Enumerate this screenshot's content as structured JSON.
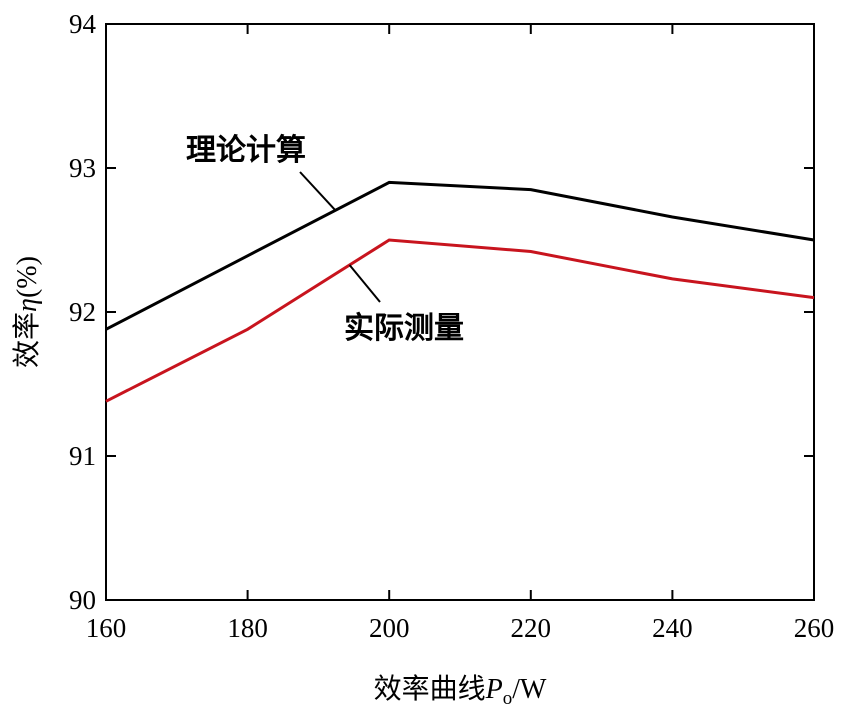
{
  "chart_data": {
    "type": "line",
    "title": "",
    "xlabel": "效率曲线Pₒ/W",
    "xlabel_parts": {
      "prefix": "效率曲线",
      "var": "P",
      "sub": "o",
      "unit": "/W"
    },
    "ylabel": "效率η(%)",
    "ylabel_parts": {
      "prefix": "效率",
      "var": "η",
      "unit": "(%)"
    },
    "x": [
      160,
      180,
      200,
      220,
      240,
      260
    ],
    "xlim": [
      160,
      260
    ],
    "ylim": [
      90,
      94
    ],
    "x_ticks": [
      "160",
      "180",
      "200",
      "220",
      "240",
      "260"
    ],
    "y_ticks": [
      "90",
      "91",
      "92",
      "93",
      "94"
    ],
    "grid": false,
    "legend": "none",
    "series": [
      {
        "name": "理论计算",
        "color": "#000000",
        "values": [
          91.88,
          92.39,
          92.9,
          92.85,
          92.66,
          92.5
        ]
      },
      {
        "name": "实际测量",
        "color": "#c8141e",
        "values": [
          91.38,
          91.88,
          92.5,
          92.42,
          92.23,
          92.1
        ]
      }
    ],
    "annotations": [
      {
        "text": "理论计算",
        "series": 0
      },
      {
        "text": "实际测量",
        "series": 1
      }
    ]
  }
}
